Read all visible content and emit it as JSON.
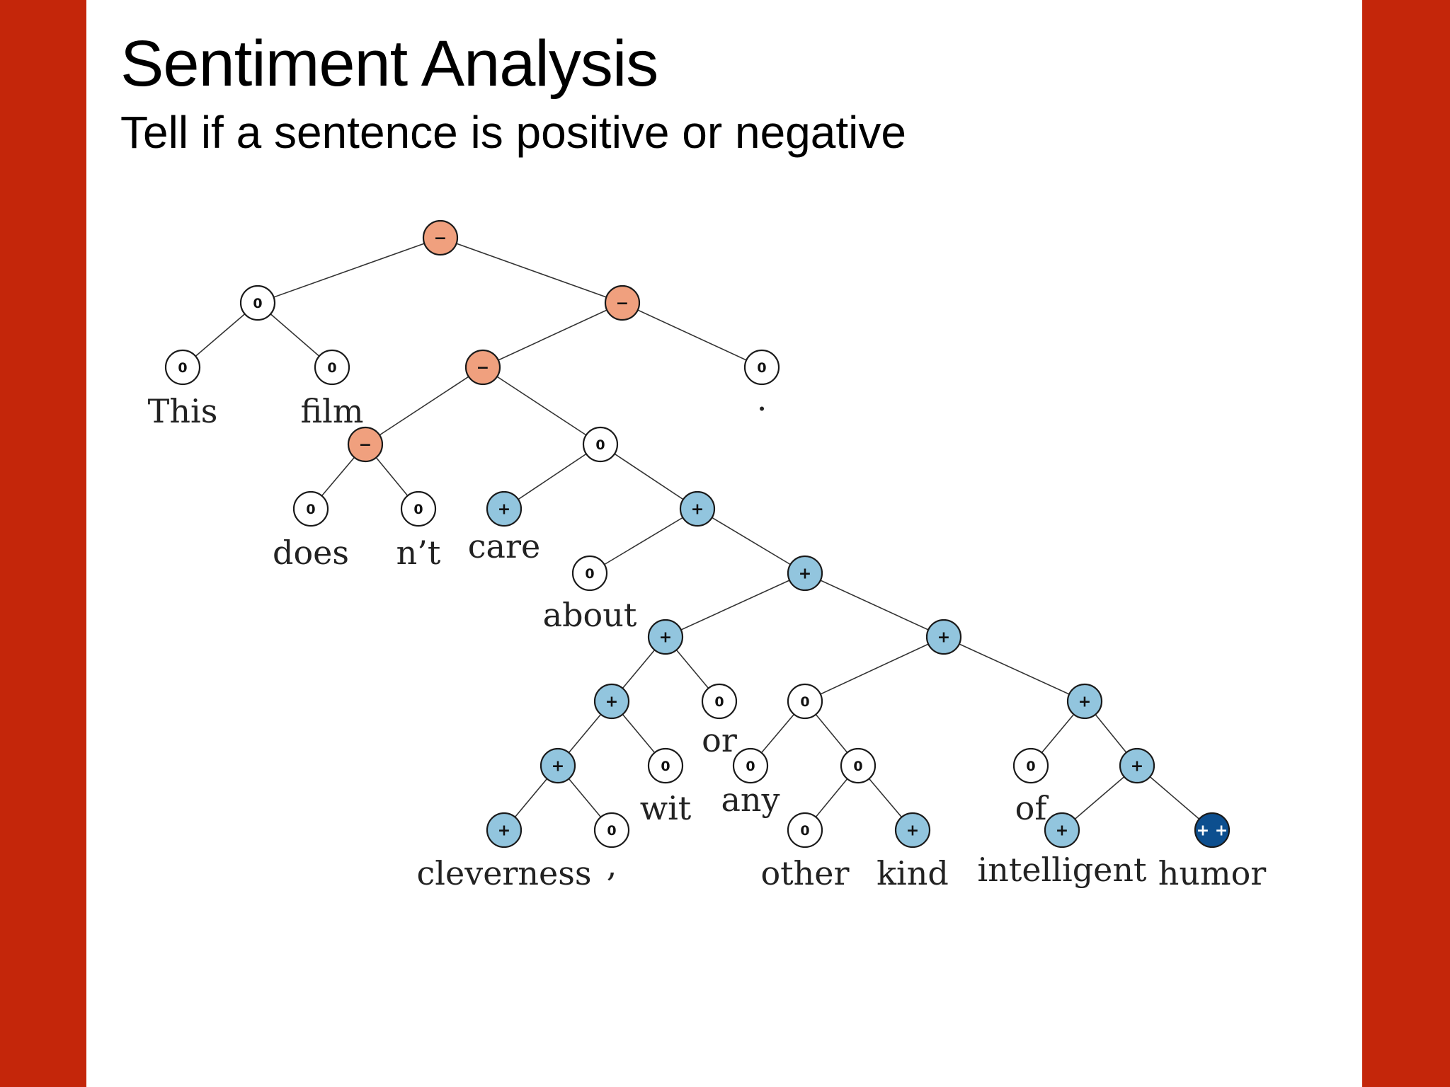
{
  "slide": {
    "title": "Sentiment Analysis",
    "subtitle": "Tell if a sentence is positive or negative"
  },
  "colors": {
    "background_bar": "#c4260a",
    "negative": "#f0a07e",
    "neutral": "#ffffff",
    "positive": "#92c5de",
    "very_positive": "#0d4f8f"
  },
  "tree": {
    "nodes": [
      {
        "id": "root",
        "label": "−",
        "sentiment": "negative"
      },
      {
        "id": "np_this_film",
        "label": "0",
        "sentiment": "neutral"
      },
      {
        "id": "this",
        "label": "0",
        "sentiment": "neutral",
        "word": "This"
      },
      {
        "id": "film",
        "label": "0",
        "sentiment": "neutral",
        "word": "film"
      },
      {
        "id": "vp_period",
        "label": "−",
        "sentiment": "negative"
      },
      {
        "id": "vp",
        "label": "−",
        "sentiment": "negative"
      },
      {
        "id": "period",
        "label": "0",
        "sentiment": "neutral",
        "word": "."
      },
      {
        "id": "doesnt",
        "label": "−",
        "sentiment": "negative"
      },
      {
        "id": "does",
        "label": "0",
        "sentiment": "neutral",
        "word": "does"
      },
      {
        "id": "nt",
        "label": "0",
        "sentiment": "neutral",
        "word": "n’t"
      },
      {
        "id": "care_about",
        "label": "0",
        "sentiment": "neutral"
      },
      {
        "id": "care",
        "label": "+",
        "sentiment": "positive",
        "word": "care"
      },
      {
        "id": "pp",
        "label": "+",
        "sentiment": "positive"
      },
      {
        "id": "about",
        "label": "0",
        "sentiment": "neutral",
        "word": "about"
      },
      {
        "id": "np_big",
        "label": "+",
        "sentiment": "positive"
      },
      {
        "id": "cl_wit_or",
        "label": "+",
        "sentiment": "positive"
      },
      {
        "id": "rest",
        "label": "+",
        "sentiment": "positive"
      },
      {
        "id": "cl_wit",
        "label": "+",
        "sentiment": "positive"
      },
      {
        "id": "or",
        "label": "0",
        "sentiment": "neutral",
        "word": "or"
      },
      {
        "id": "any_other_kind",
        "label": "0",
        "sentiment": "neutral"
      },
      {
        "id": "of_phrase",
        "label": "+",
        "sentiment": "positive"
      },
      {
        "id": "cl_comma",
        "label": "+",
        "sentiment": "positive"
      },
      {
        "id": "wit",
        "label": "0",
        "sentiment": "neutral",
        "word": "wit"
      },
      {
        "id": "any",
        "label": "0",
        "sentiment": "neutral",
        "word": "any"
      },
      {
        "id": "other_kind",
        "label": "0",
        "sentiment": "neutral"
      },
      {
        "id": "of",
        "label": "0",
        "sentiment": "neutral",
        "word": "of"
      },
      {
        "id": "int_humor",
        "label": "+",
        "sentiment": "positive"
      },
      {
        "id": "cleverness",
        "label": "+",
        "sentiment": "positive",
        "word": "cleverness"
      },
      {
        "id": "comma",
        "label": "0",
        "sentiment": "neutral",
        "word": ","
      },
      {
        "id": "other",
        "label": "0",
        "sentiment": "neutral",
        "word": "other"
      },
      {
        "id": "kind",
        "label": "+",
        "sentiment": "positive",
        "word": "kind"
      },
      {
        "id": "intelligent",
        "label": "+",
        "sentiment": "positive",
        "word": "intelligent"
      },
      {
        "id": "humor",
        "label": "+ +",
        "sentiment": "very_positive",
        "word": "humor"
      }
    ],
    "edges": [
      [
        "root",
        "np_this_film"
      ],
      [
        "root",
        "vp_period"
      ],
      [
        "np_this_film",
        "this"
      ],
      [
        "np_this_film",
        "film"
      ],
      [
        "vp_period",
        "vp"
      ],
      [
        "vp_period",
        "period"
      ],
      [
        "vp",
        "doesnt"
      ],
      [
        "vp",
        "care_about"
      ],
      [
        "doesnt",
        "does"
      ],
      [
        "doesnt",
        "nt"
      ],
      [
        "care_about",
        "care"
      ],
      [
        "care_about",
        "pp"
      ],
      [
        "pp",
        "about"
      ],
      [
        "pp",
        "np_big"
      ],
      [
        "np_big",
        "cl_wit_or"
      ],
      [
        "np_big",
        "rest"
      ],
      [
        "cl_wit_or",
        "cl_wit"
      ],
      [
        "cl_wit_or",
        "or"
      ],
      [
        "cl_wit",
        "cl_comma"
      ],
      [
        "cl_wit",
        "wit"
      ],
      [
        "cl_comma",
        "cleverness"
      ],
      [
        "cl_comma",
        "comma"
      ],
      [
        "rest",
        "any_other_kind"
      ],
      [
        "rest",
        "of_phrase"
      ],
      [
        "any_other_kind",
        "any"
      ],
      [
        "any_other_kind",
        "other_kind"
      ],
      [
        "other_kind",
        "other"
      ],
      [
        "other_kind",
        "kind"
      ],
      [
        "of_phrase",
        "of"
      ],
      [
        "of_phrase",
        "int_humor"
      ],
      [
        "int_humor",
        "intelligent"
      ],
      [
        "int_humor",
        "humor"
      ]
    ]
  }
}
